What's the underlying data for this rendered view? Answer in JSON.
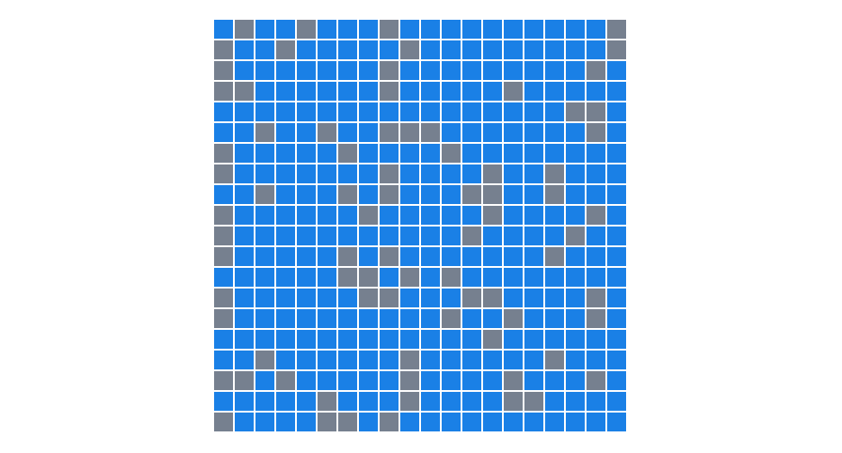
{
  "board": {
    "rows": 20,
    "cols": 20,
    "colors": {
      "open": "#1a80e6",
      "blocked": "#76808f",
      "background": "#ffffff"
    },
    "cells": [
      "01001000100000000001",
      "10010000010000000001",
      "10000000100000000010",
      "11000000100000100000",
      "00000000000000000110",
      "00100100111000000010",
      "10000010000100000000",
      "10000000100001001000",
      "00100010100011001000",
      "10000001000001000010",
      "10000000000010000100",
      "10000010100000001000",
      "00000011010100000000",
      "10000001100011000010",
      "10000000000100100010",
      "00000000000001000000",
      "00100000010000001000",
      "11010000010000100010",
      "00000100010000110000",
      "10000110100000000000"
    ]
  }
}
